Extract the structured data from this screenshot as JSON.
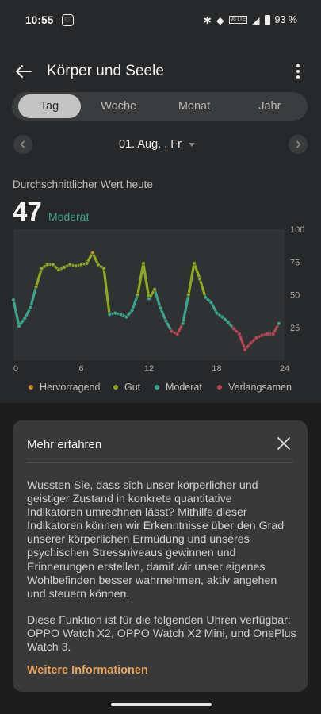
{
  "status_bar": {
    "time": "10:55",
    "network": "Vo LTE",
    "battery": "93 %"
  },
  "header": {
    "title": "Körper und Seele"
  },
  "tabs": [
    {
      "label": "Tag"
    },
    {
      "label": "Woche"
    },
    {
      "label": "Monat"
    },
    {
      "label": "Jahr"
    }
  ],
  "date": {
    "label": "01. Aug. , Fr"
  },
  "summary": {
    "label": "Durchschnittlicher Wert heute",
    "value": "47",
    "status": "Moderat"
  },
  "legend": [
    {
      "label": "Hervorragend",
      "color": "#c78a2e"
    },
    {
      "label": "Gut",
      "color": "#8fa81f"
    },
    {
      "label": "Moderat",
      "color": "#3aa58c"
    },
    {
      "label": "Verlangsamen",
      "color": "#b84555"
    }
  ],
  "chart_data": {
    "type": "line",
    "x_ticks": [
      "0",
      "6",
      "12",
      "18",
      "24"
    ],
    "y_ticks": [
      "100",
      "75",
      "50",
      "25"
    ],
    "xlim": [
      0,
      24
    ],
    "ylim": [
      0,
      100
    ],
    "x": [
      0,
      0.5,
      1,
      1.5,
      2,
      2.5,
      3,
      3.5,
      4,
      4.5,
      5,
      5.5,
      6,
      6.5,
      7,
      7.5,
      8,
      8.5,
      9,
      9.5,
      10,
      10.5,
      11,
      11.5,
      12,
      12.5,
      13,
      13.5,
      14,
      14.5,
      15,
      15.5,
      16,
      16.5,
      17,
      17.5,
      18,
      18.5,
      19,
      19.5,
      20,
      20.5,
      21,
      21.5,
      22,
      22.5,
      23,
      23.5
    ],
    "y": [
      46,
      26,
      32,
      40,
      56,
      70,
      73,
      73,
      69,
      71,
      73,
      72,
      73,
      74,
      82,
      73,
      70,
      35,
      36,
      35,
      33,
      38,
      50,
      74,
      47,
      54,
      40,
      30,
      22,
      20,
      28,
      50,
      74,
      62,
      48,
      44,
      36,
      33,
      29,
      24,
      20,
      8,
      13,
      17,
      19,
      20,
      20,
      28
    ],
    "levels": {
      "Hervorragend": [
        80,
        100
      ],
      "Gut": [
        50,
        80
      ],
      "Moderat": [
        25,
        50
      ],
      "Verlangsamen": [
        0,
        25
      ]
    }
  },
  "info_card": {
    "title": "Mehr erfahren",
    "body_lines": [
      "Wussten Sie, dass sich unser körperlicher und",
      "geistiger Zustand in konkrete quantitative",
      "Indikatoren umrechnen lässt? Mithilfe dieser",
      "Indikatoren können wir Erkenntnisse über den Grad",
      "unserer körperlichen Ermüdung und unseres",
      "psychischen Stressniveaus gewinnen und",
      "Erinnerungen erstellen, damit wir unser eigenes",
      "Wohlbefinden besser wahrnehmen, aktiv angehen",
      "und steuern können."
    ],
    "body2_lines": [
      "Diese Funktion ist für die folgenden Uhren verfügbar:",
      "OPPO Watch X2, OPPO Watch X2 Mini, und OnePlus",
      "Watch 3."
    ],
    "link": "Weitere Informationen"
  }
}
